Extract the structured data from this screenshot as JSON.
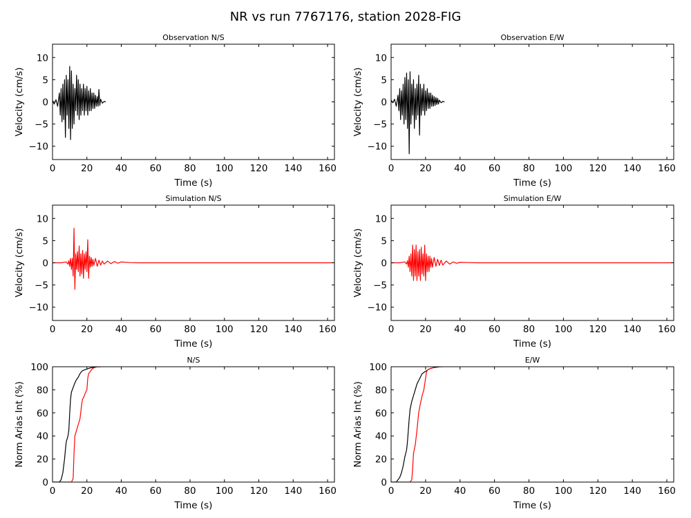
{
  "figure": {
    "title": "NR vs run 7767176, station 2028-FIG"
  },
  "colors": {
    "observation": "#000000",
    "simulation": "#ff0000"
  },
  "chart_data": [
    {
      "type": "line",
      "title": "Observation N/S",
      "xlabel": "Time (s)",
      "ylabel": "Velocity (cm/s)",
      "xlim": [
        0,
        164
      ],
      "ylim": [
        -13,
        13
      ],
      "xticks": [
        0,
        20,
        40,
        60,
        80,
        100,
        120,
        140,
        160
      ],
      "yticks": [
        -10,
        -5,
        0,
        5,
        10
      ],
      "series": [
        {
          "color": "#000000",
          "x": [
            0,
            1,
            2,
            3,
            4,
            4.5,
            5,
            5.5,
            6,
            6.5,
            7,
            7.5,
            8,
            8.5,
            9,
            9.5,
            10,
            10.5,
            11,
            11.5,
            12,
            12.5,
            13,
            13.5,
            14,
            14.5,
            15,
            15.5,
            16,
            16.5,
            17,
            17.5,
            18,
            18.5,
            19,
            19.5,
            20,
            20.5,
            21,
            21.5,
            22,
            22.5,
            23,
            23.5,
            24,
            24.5,
            25,
            25.5,
            26,
            26.5,
            27,
            27.5,
            28,
            29,
            30,
            31
          ],
          "y": [
            0.3,
            -0.5,
            0.5,
            -1,
            2,
            -3,
            3,
            -4.5,
            4,
            -4,
            5,
            -8,
            6,
            -3,
            5,
            -6,
            8,
            -8.5,
            7,
            -6,
            4,
            -5,
            3,
            -2,
            6,
            -3,
            5,
            -4,
            4,
            -3,
            3,
            -2,
            4,
            -3,
            3,
            -2,
            3.5,
            -3,
            2.5,
            -2,
            3,
            -2,
            2,
            -1.5,
            2,
            -1.5,
            1.5,
            -1,
            1.2,
            -1,
            2.8,
            -0.8,
            0.6,
            -0.3,
            0.1,
            0
          ]
        }
      ]
    },
    {
      "type": "line",
      "title": "Observation E/W",
      "xlabel": "Time (s)",
      "ylabel": "Velocity (cm/s)",
      "xlim": [
        0,
        164
      ],
      "ylim": [
        -13,
        13
      ],
      "xticks": [
        0,
        20,
        40,
        60,
        80,
        100,
        120,
        140,
        160
      ],
      "yticks": [
        -10,
        -5,
        0,
        5,
        10
      ],
      "series": [
        {
          "color": "#000000",
          "x": [
            0,
            1,
            2,
            3,
            4,
            4.5,
            5,
            5.5,
            6,
            6.5,
            7,
            7.5,
            8,
            8.5,
            9,
            9.5,
            10,
            10.5,
            11,
            11.5,
            12,
            12.5,
            13,
            13.5,
            14,
            14.5,
            15,
            15.5,
            16,
            16.5,
            17,
            17.5,
            18,
            18.5,
            19,
            19.5,
            20,
            20.5,
            21,
            21.5,
            22,
            22.5,
            23,
            23.5,
            24,
            24.5,
            25,
            25.5,
            26,
            26.5,
            27,
            27.5,
            28,
            29,
            30,
            31
          ],
          "y": [
            0.4,
            -0.2,
            0.6,
            -1,
            1.5,
            -2,
            3,
            -4,
            2.5,
            -3,
            4,
            -5,
            5.5,
            -4,
            6.5,
            -6,
            5,
            -11.7,
            6.8,
            -5,
            4,
            -3,
            5,
            -6,
            3,
            -4,
            4,
            -3,
            6,
            -7.5,
            4,
            -3,
            3,
            -2,
            4,
            -3,
            2.5,
            -2,
            3,
            -1.5,
            2,
            -1.5,
            2,
            -1,
            1.5,
            -1,
            1.2,
            -0.8,
            1,
            -0.6,
            0.8,
            -0.5,
            0.4,
            -0.2,
            0.1,
            0
          ]
        }
      ]
    },
    {
      "type": "line",
      "title": "Simulation N/S",
      "xlabel": "Time (s)",
      "ylabel": "Velocity (cm/s)",
      "xlim": [
        0,
        164
      ],
      "ylim": [
        -13,
        13
      ],
      "xticks": [
        0,
        20,
        40,
        60,
        80,
        100,
        120,
        140,
        160
      ],
      "yticks": [
        -10,
        -5,
        0,
        5,
        10
      ],
      "series": [
        {
          "color": "#ff0000",
          "x": [
            0,
            5,
            8,
            9,
            9.5,
            10,
            10.5,
            11,
            11.5,
            12,
            12.5,
            13,
            13.5,
            14,
            14.5,
            15,
            15.5,
            16,
            16.5,
            17,
            17.5,
            18,
            18.5,
            19,
            19.5,
            20,
            20.5,
            21,
            21.5,
            22,
            22.5,
            23,
            23.5,
            24,
            25,
            26,
            27,
            28,
            29,
            30,
            32,
            34,
            36,
            38,
            40,
            45,
            50,
            163
          ],
          "y": [
            0,
            0,
            0.2,
            -0.3,
            0.5,
            -0.8,
            1,
            -1.5,
            1,
            -3,
            7.8,
            -6,
            2,
            -1.5,
            2.5,
            -2,
            3.8,
            -3,
            2,
            -2.5,
            2.8,
            -3.5,
            2,
            -1.5,
            2.5,
            -2,
            5.2,
            -3.5,
            1.5,
            -1,
            1.2,
            -0.8,
            0.8,
            -0.6,
            1,
            -0.8,
            0.6,
            -0.5,
            0.4,
            -0.3,
            0.4,
            -0.2,
            0.3,
            -0.1,
            0.2,
            0.05,
            0,
            0
          ]
        }
      ]
    },
    {
      "type": "line",
      "title": "Simulation E/W",
      "xlabel": "Time (s)",
      "ylabel": "Velocity (cm/s)",
      "xlim": [
        0,
        164
      ],
      "ylim": [
        -13,
        13
      ],
      "xticks": [
        0,
        20,
        40,
        60,
        80,
        100,
        120,
        140,
        160
      ],
      "yticks": [
        -10,
        -5,
        0,
        5,
        10
      ],
      "series": [
        {
          "color": "#ff0000",
          "x": [
            0,
            5,
            8,
            9,
            9.5,
            10,
            10.5,
            11,
            11.5,
            12,
            12.5,
            13,
            13.5,
            14,
            14.5,
            15,
            15.5,
            16,
            16.5,
            17,
            17.5,
            18,
            18.5,
            19,
            19.5,
            20,
            20.5,
            21,
            21.5,
            22,
            22.5,
            23,
            23.5,
            24,
            25,
            26,
            27,
            28,
            29,
            30,
            32,
            34,
            36,
            38,
            40,
            45,
            50,
            163
          ],
          "y": [
            0,
            0,
            0.2,
            -0.3,
            0.5,
            -1,
            1.5,
            -2,
            2,
            -3,
            4,
            -4,
            3,
            -3,
            4,
            -4,
            2.5,
            -3,
            3,
            -4,
            3.5,
            -2.5,
            2,
            -3,
            4,
            -4,
            2,
            -2,
            1.5,
            -2,
            1.5,
            -1,
            1,
            -1,
            1.2,
            -0.8,
            0.8,
            -0.6,
            0.6,
            -0.5,
            0.4,
            -0.3,
            0.2,
            -0.1,
            0.1,
            0.05,
            0,
            0
          ]
        }
      ]
    },
    {
      "type": "line",
      "title": "N/S",
      "xlabel": "Time (s)",
      "ylabel": "Norm Arias Int (%)",
      "xlim": [
        0,
        164
      ],
      "ylim": [
        0,
        100
      ],
      "xticks": [
        0,
        20,
        40,
        60,
        80,
        100,
        120,
        140,
        160
      ],
      "yticks": [
        0,
        20,
        40,
        60,
        80,
        100
      ],
      "series": [
        {
          "color": "#000000",
          "x": [
            0,
            4,
            5,
            6,
            6.5,
            7,
            7.5,
            8,
            9,
            9.5,
            10,
            10.5,
            11,
            12,
            13,
            14,
            15,
            16,
            17,
            18,
            20,
            22,
            24,
            26,
            28
          ],
          "y": [
            0,
            0,
            2,
            8,
            14,
            20,
            28,
            35,
            40,
            45,
            60,
            72,
            78,
            82,
            86,
            89,
            91,
            94,
            96,
            97,
            98,
            99,
            99.5,
            100,
            100
          ]
        },
        {
          "color": "#ff0000",
          "x": [
            0,
            11,
            12,
            12.5,
            13,
            14,
            15,
            16,
            17,
            17.5,
            18,
            19,
            20,
            20.5,
            21,
            22,
            23,
            24,
            25,
            26,
            27,
            28
          ],
          "y": [
            0,
            0,
            3,
            25,
            40,
            45,
            50,
            55,
            68,
            72,
            73,
            77,
            80,
            90,
            94,
            96,
            98,
            99,
            99.5,
            100,
            100,
            100
          ]
        }
      ]
    },
    {
      "type": "line",
      "title": "E/W",
      "xlabel": "Time (s)",
      "ylabel": "Norm Arias Int (%)",
      "xlim": [
        0,
        164
      ],
      "ylim": [
        0,
        100
      ],
      "xticks": [
        0,
        20,
        40,
        60,
        80,
        100,
        120,
        140,
        160
      ],
      "yticks": [
        0,
        20,
        40,
        60,
        80,
        100
      ],
      "series": [
        {
          "color": "#000000",
          "x": [
            0,
            3,
            4,
            5,
            6,
            7,
            8,
            9,
            9.5,
            10,
            10.5,
            11,
            12,
            13,
            14,
            15,
            16,
            17,
            18,
            20,
            22,
            24,
            26,
            28,
            30
          ],
          "y": [
            0,
            0,
            2,
            4,
            8,
            14,
            22,
            28,
            35,
            45,
            55,
            63,
            70,
            75,
            80,
            85,
            88,
            91,
            94,
            96,
            98,
            99,
            99.5,
            100,
            100
          ]
        },
        {
          "color": "#ff0000",
          "x": [
            0,
            11,
            12,
            12.5,
            13,
            14,
            15,
            16,
            17,
            18,
            19,
            20,
            20.5,
            21,
            22,
            23,
            24,
            25,
            26,
            27,
            28
          ],
          "y": [
            0,
            0,
            2,
            12,
            25,
            32,
            45,
            60,
            68,
            75,
            80,
            90,
            95,
            97,
            98,
            98.5,
            99,
            99.5,
            100,
            100,
            100
          ]
        }
      ]
    }
  ]
}
